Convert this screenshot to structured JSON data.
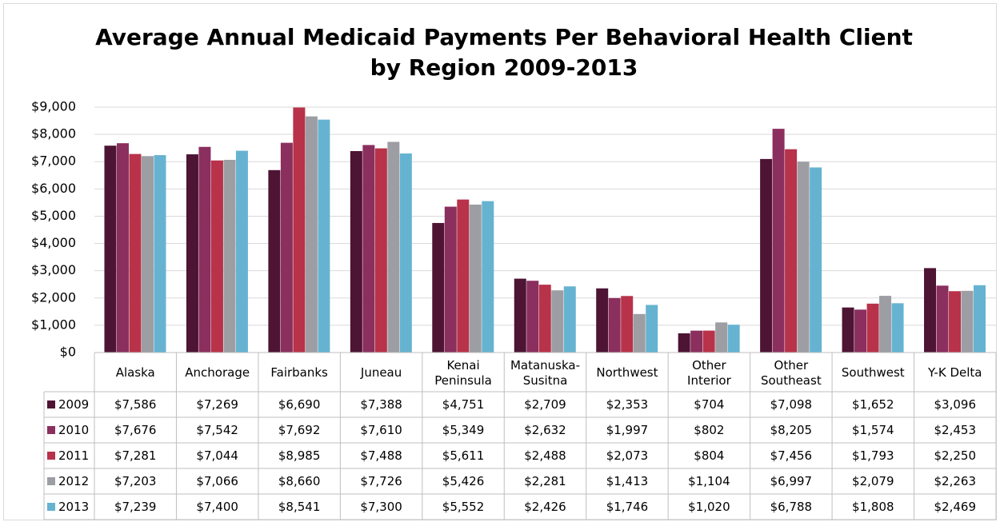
{
  "chart_data": {
    "type": "bar",
    "title": "Average Annual Medicaid Payments Per Behavioral Health Client",
    "subtitle": "by Region 2009-2013",
    "categories": [
      "Alaska",
      "Anchorage",
      "Fairbanks",
      "Juneau",
      "Kenai Peninsula",
      "Matanuska-Susitna",
      "Northwest",
      "Other Interior",
      "Other Southeast",
      "Southwest",
      "Y-K Delta"
    ],
    "series": [
      {
        "name": "2009",
        "color": "#4d1434",
        "values": [
          7586,
          7269,
          6690,
          7388,
          4751,
          2709,
          2353,
          704,
          7098,
          1652,
          3096
        ],
        "value_labels": [
          "$7,586",
          "$7,269",
          "$6,690",
          "$7,388",
          "$4,751",
          "$2,709",
          "$2,353",
          "$704",
          "$7,098",
          "$1,652",
          "$3,096"
        ]
      },
      {
        "name": "2010",
        "color": "#8b2f5e",
        "values": [
          7676,
          7542,
          7692,
          7610,
          5349,
          2632,
          1997,
          802,
          8205,
          1574,
          2453
        ],
        "value_labels": [
          "$7,676",
          "$7,542",
          "$7,692",
          "$7,610",
          "$5,349",
          "$2,632",
          "$1,997",
          "$802",
          "$8,205",
          "$1,574",
          "$2,453"
        ]
      },
      {
        "name": "2011",
        "color": "#b8324a",
        "values": [
          7281,
          7044,
          8985,
          7488,
          5611,
          2488,
          2073,
          804,
          7456,
          1793,
          2250
        ],
        "value_labels": [
          "$7,281",
          "$7,044",
          "$8,985",
          "$7,488",
          "$5,611",
          "$2,488",
          "$2,073",
          "$804",
          "$7,456",
          "$1,793",
          "$2,250"
        ]
      },
      {
        "name": "2012",
        "color": "#9c9ea3",
        "values": [
          7203,
          7066,
          8660,
          7726,
          5426,
          2281,
          1413,
          1104,
          6997,
          2079,
          2263
        ],
        "value_labels": [
          "$7,203",
          "$7,066",
          "$8,660",
          "$7,726",
          "$5,426",
          "$2,281",
          "$1,413",
          "$1,104",
          "$6,997",
          "$2,079",
          "$2,263"
        ]
      },
      {
        "name": "2013",
        "color": "#66b3d1",
        "values": [
          7239,
          7400,
          8541,
          7300,
          5552,
          2426,
          1746,
          1020,
          6788,
          1808,
          2469
        ],
        "value_labels": [
          "$7,239",
          "$7,400",
          "$8,541",
          "$7,300",
          "$5,552",
          "$2,426",
          "$1,746",
          "$1,020",
          "$6,788",
          "$1,808",
          "$2,469"
        ]
      }
    ],
    "ylim": [
      0,
      9000
    ],
    "yticks": [
      {
        "value": 0,
        "label": "$0"
      },
      {
        "value": 1000,
        "label": "$1,000"
      },
      {
        "value": 2000,
        "label": "$2,000"
      },
      {
        "value": 3000,
        "label": "$3,000"
      },
      {
        "value": 4000,
        "label": "$4,000"
      },
      {
        "value": 5000,
        "label": "$5,000"
      },
      {
        "value": 6000,
        "label": "$6,000"
      },
      {
        "value": 7000,
        "label": "$7,000"
      },
      {
        "value": 8000,
        "label": "$8,000"
      },
      {
        "value": 9000,
        "label": "$9,000"
      }
    ],
    "grid": true
  }
}
